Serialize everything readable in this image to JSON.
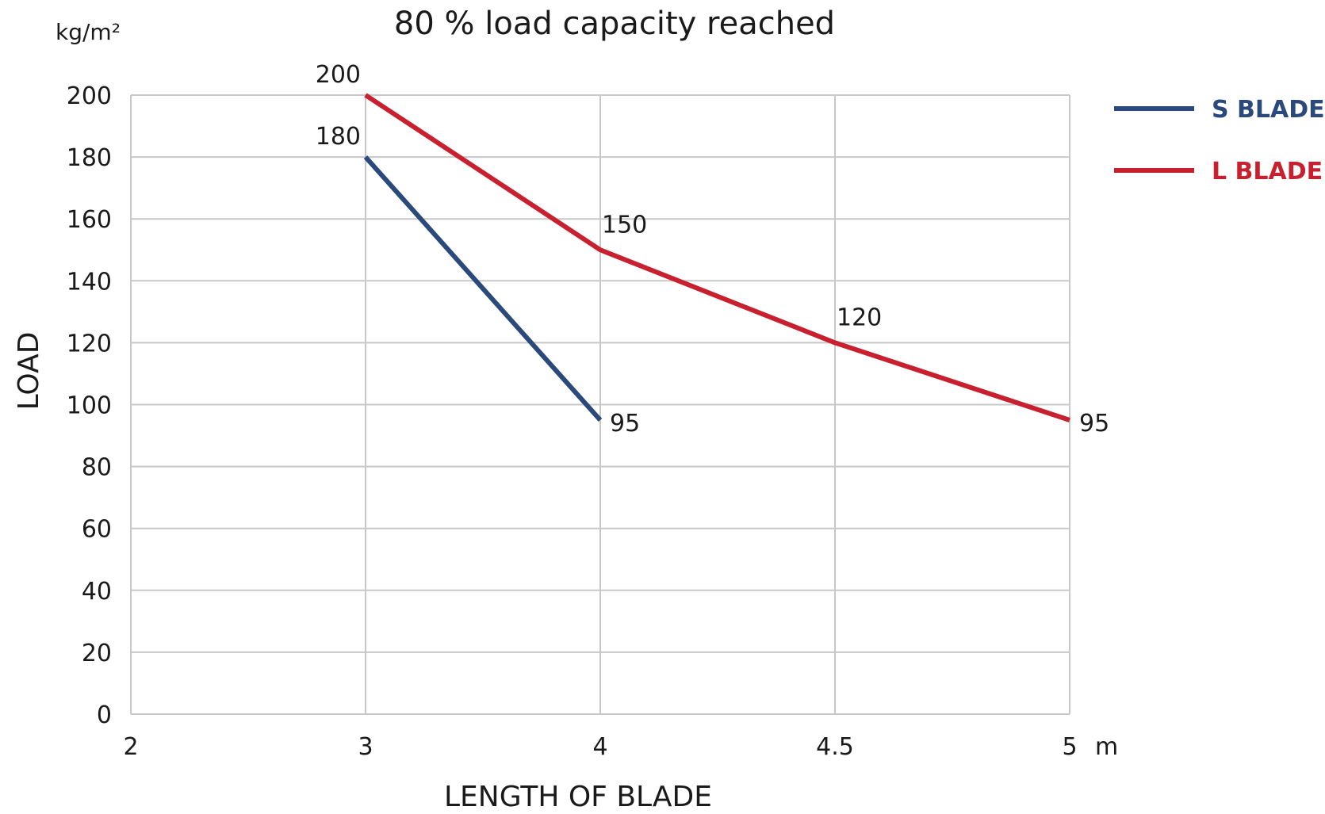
{
  "chart_data": {
    "type": "line",
    "title": "80 % load capacity reached",
    "y_unit": "kg/m²",
    "x_unit": "m",
    "xlabel": "LENGTH OF BLADE",
    "ylabel": "LOAD",
    "categories": [
      "2",
      "3",
      "4",
      "4.5",
      "5"
    ],
    "y_ticks": [
      "0",
      "20",
      "40",
      "60",
      "80",
      "100",
      "120",
      "140",
      "160",
      "180",
      "200"
    ],
    "ylim": [
      0,
      200
    ],
    "grid": true,
    "legend_position": "right",
    "series": [
      {
        "name": "S BLADE",
        "color": "#2b4a7c",
        "x": [
          "3",
          "4"
        ],
        "values": [
          180,
          95
        ],
        "labels": [
          "180",
          "95"
        ]
      },
      {
        "name": "L BLADE",
        "color": "#c8202f",
        "x": [
          "3",
          "4",
          "4.5",
          "5"
        ],
        "values": [
          200,
          150,
          120,
          95
        ],
        "labels": [
          "200",
          "150",
          "120",
          "95"
        ]
      }
    ]
  }
}
